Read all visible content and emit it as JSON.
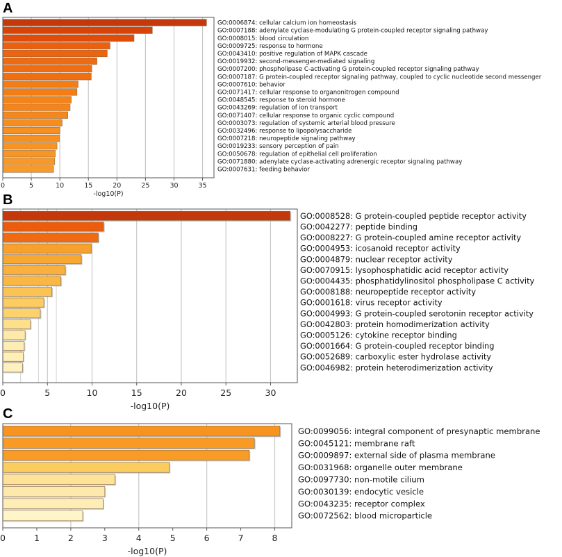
{
  "chart_data": [
    {
      "panel": "A",
      "type": "bar",
      "orientation": "horizontal",
      "xlabel": "-log10(P)",
      "xlim": [
        0,
        37
      ],
      "xticks": [
        0,
        5,
        10,
        15,
        20,
        25,
        30,
        35
      ],
      "grid": "vertical",
      "categories": [
        "GO:0006874: cellular calcium ion homeostasis",
        "GO:0007188: adenylate cyclase-modulating G protein-coupled receptor signaling pathway",
        "GO:0008015: blood circulation",
        "GO:0009725: response to hormone",
        "GO:0043410: positive regulation of MAPK cascade",
        "GO:0019932: second-messenger-mediated signaling",
        "GO:0007200: phospholipase C-activating G protein-coupled receptor signaling pathway",
        "GO:0007187: G protein-coupled receptor signaling pathway, coupled to cyclic nucleotide second messenger",
        "GO:0007610: behavior",
        "GO:0071417: cellular response to organonitrogen compound",
        "GO:0048545: response to steroid hormone",
        "GO:0043269: regulation of ion transport",
        "GO:0071407: cellular response to organic cyclic compound",
        "GO:0003073: regulation of systemic arterial blood pressure",
        "GO:0032496: response to lipopolysaccharide",
        "GO:0007218: neuropeptide signaling pathway",
        "GO:0019233: sensory perception of pain",
        "GO:0050678: regulation of epithelial cell proliferation",
        "GO:0071880: adenylate cyclase-activating adrenergic receptor signaling pathway",
        "GO:0007631: feeding behavior"
      ],
      "values": [
        35.7,
        26.2,
        23.0,
        18.8,
        18.3,
        16.5,
        15.6,
        15.5,
        13.2,
        13.0,
        12.0,
        11.8,
        11.4,
        10.4,
        10.0,
        9.9,
        9.5,
        9.2,
        9.1,
        8.9
      ],
      "colors": [
        "#c5380c",
        "#d8430a",
        "#e04d0a",
        "#ec5f0d",
        "#ee630e",
        "#ef6a10",
        "#f06e11",
        "#f07011",
        "#f47d15",
        "#f47e15",
        "#f58418",
        "#f5851a",
        "#f6881b",
        "#f68e1f",
        "#f69020",
        "#f69121",
        "#f79424",
        "#f79627",
        "#f79828",
        "#f79a2a"
      ]
    },
    {
      "panel": "B",
      "type": "bar",
      "orientation": "horizontal",
      "xlabel": "-log10(P)",
      "xlim": [
        0,
        33
      ],
      "xticks": [
        0,
        5,
        10,
        15,
        20,
        25,
        30
      ],
      "grid": "vertical",
      "categories": [
        "GO:0008528: G protein-coupled peptide receptor activity",
        "GO:0042277: peptide binding",
        "GO:0008227: G protein-coupled amine receptor activity",
        "GO:0004953: icosanoid receptor activity",
        "GO:0004879: nuclear receptor activity",
        "GO:0070915: lysophosphatidic acid receptor activity",
        "GO:0004435: phosphatidylinositol phospholipase C activity",
        "GO:0008188: neuropeptide receptor activity",
        "GO:0001618: virus receptor activity",
        "GO:0004993: G protein-coupled serotonin receptor activity",
        "GO:0042803: protein homodimerization activity",
        "GO:0005126: cytokine receptor binding",
        "GO:0001664: G protein-coupled receptor binding",
        "GO:0052689: carboxylic ester hydrolase activity",
        "GO:0046982: protein heterodimerization activity"
      ],
      "values": [
        32.2,
        11.3,
        10.7,
        9.9,
        8.8,
        7.0,
        6.5,
        5.5,
        4.6,
        4.2,
        3.1,
        2.5,
        2.4,
        2.3,
        2.2
      ],
      "colors": [
        "#c5380c",
        "#ec5c0c",
        "#ef6a10",
        "#f7a12c",
        "#f8a830",
        "#f9b03c",
        "#fab743",
        "#fbc354",
        "#fccc62",
        "#fcd26c",
        "#fde08c",
        "#fee9a8",
        "#feedb3",
        "#feefb8",
        "#fef1be"
      ]
    },
    {
      "panel": "C",
      "type": "bar",
      "orientation": "horizontal",
      "xlabel": "-log10(P)",
      "xlim": [
        0,
        8.5
      ],
      "xticks": [
        0,
        1,
        2,
        3,
        4,
        5,
        6,
        7,
        8
      ],
      "grid": "vertical-even",
      "categories": [
        "GO:0099056: integral component of presynaptic membrane",
        "GO:0045121: membrane raft",
        "GO:0009897: external side of plasma membrane",
        "GO:0031968: organelle outer membrane",
        "GO:0097730: non-motile cilium",
        "GO:0030139: endocytic vesicle",
        "GO:0043235: receptor complex",
        "GO:0072562: blood microparticle"
      ],
      "values": [
        8.15,
        7.4,
        7.25,
        4.9,
        3.3,
        3.0,
        2.95,
        2.35
      ],
      "colors": [
        "#f7931f",
        "#f89a24",
        "#f89c26",
        "#fbcd5e",
        "#fde298",
        "#fde9ab",
        "#feeeb6",
        "#fef5c9"
      ]
    }
  ]
}
